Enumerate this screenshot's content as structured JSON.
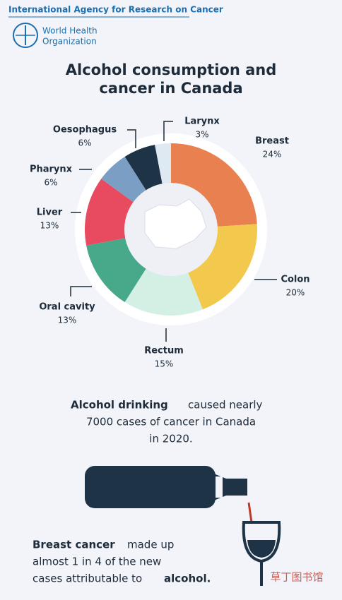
{
  "header": {
    "agency": "International Agency for Research on Cancer",
    "org_line1": "World Health",
    "org_line2": "Organization"
  },
  "chart_data": {
    "type": "pie",
    "title_line1": "Alcohol consumption and",
    "title_line2": "cancer in Canada",
    "categories": [
      "Breast",
      "Colon",
      "Rectum",
      "Oral cavity",
      "Liver",
      "Pharynx",
      "Oesophagus",
      "Larynx"
    ],
    "values": [
      24,
      20,
      15,
      13,
      13,
      6,
      6,
      3
    ],
    "value_labels": [
      "24%",
      "20%",
      "15%",
      "13%",
      "13%",
      "6%",
      "6%",
      "3%"
    ],
    "colors": [
      "#e8814f",
      "#f2c94c",
      "#d4f0e4",
      "#47a98a",
      "#e84a5f",
      "#7b9ec4",
      "#1f3347",
      "#dfe9f1"
    ]
  },
  "text1": {
    "bold": "Alcohol drinking",
    "rest_line1": "caused nearly",
    "line2": "7000 cases of cancer in Canada",
    "line3": "in 2020."
  },
  "text2": {
    "bold": "Breast cancer",
    "rest_line1": "made up",
    "line2": "almost 1 in 4 of the new",
    "line3_pre": "cases attributable to",
    "line3_bold": "alcohol."
  },
  "watermark": "草丁图书馆"
}
